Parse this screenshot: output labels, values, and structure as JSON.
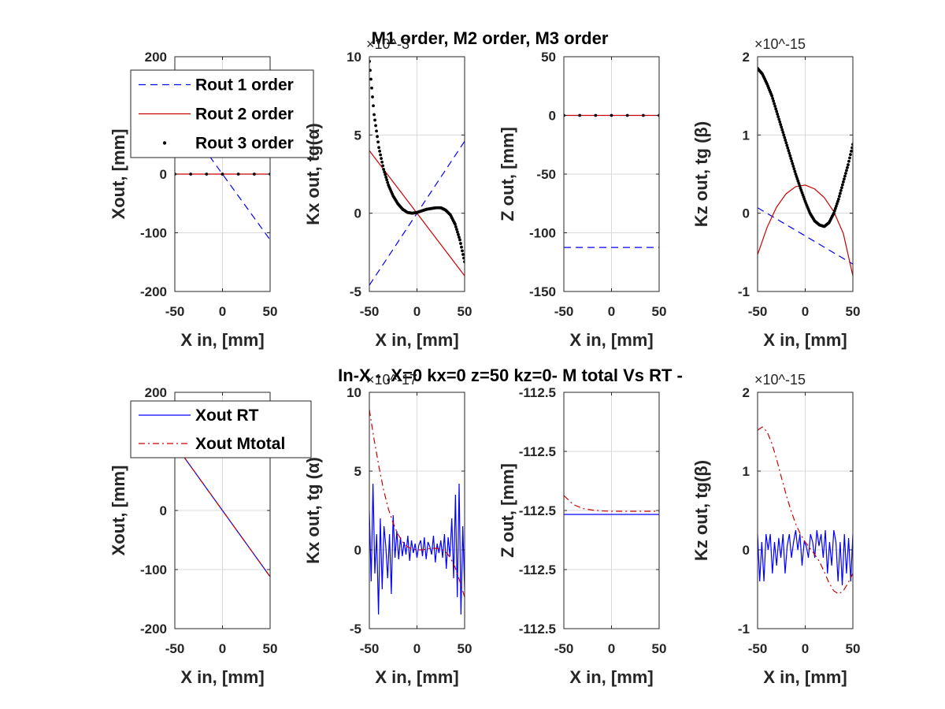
{
  "figure": {
    "title_top": "M1 order, M2 order, M3 order",
    "title_bottom": "In-X - ,X=0  kx=0   z=50   kz=0- M total Vs RT -",
    "colors": {
      "first": "#0000ff",
      "second": "#cc0000",
      "third": "#000000",
      "rt": "#0000ff",
      "mtotal": "#cc0000",
      "axis": "#262626",
      "grid": "#d9d9d9"
    }
  },
  "chart_data": [
    {
      "type": "line",
      "id": "top_xout",
      "xlabel": "X in, [mm]",
      "ylabel": "Xout, [mm]",
      "xlim": [
        -50,
        50
      ],
      "ylim": [
        -200,
        200
      ],
      "xticks": [
        "-50",
        "0",
        "50"
      ],
      "yticks": [
        "200",
        "100",
        "0",
        "-100",
        "-200"
      ],
      "legend": {
        "position": "top-left",
        "entries": [
          "Rout 1 order",
          "Rout 2 order",
          "Rout 3 order"
        ]
      },
      "series": [
        {
          "name": "Rout 1 order",
          "style": "dashed",
          "x": [
            -50,
            50
          ],
          "y": [
            112,
            -112
          ]
        },
        {
          "name": "Rout 2 order",
          "style": "solid",
          "x": [
            -50,
            50
          ],
          "y": [
            0,
            0
          ]
        },
        {
          "name": "Rout 3 order",
          "style": "dotted",
          "x": [
            -50,
            50
          ],
          "y": [
            0,
            0
          ]
        }
      ]
    },
    {
      "type": "line",
      "id": "top_kx",
      "xlabel": "X in, [mm]",
      "ylabel": "Kx out, tg(α)",
      "multiplier": "×10^-3",
      "xlim": [
        -50,
        50
      ],
      "ylim": [
        -5,
        10
      ],
      "xticks": [
        "-50",
        "0",
        "50"
      ],
      "yticks": [
        "10",
        "5",
        "0",
        "-5"
      ],
      "series": [
        {
          "name": "Rout 1 order",
          "style": "dashed",
          "x": [
            -50,
            50
          ],
          "y": [
            -4.6,
            4.6
          ]
        },
        {
          "name": "Rout 2 order",
          "style": "solid",
          "x": [
            -50,
            50
          ],
          "y": [
            4.0,
            -4.0
          ]
        },
        {
          "name": "Rout 3 order",
          "style": "dotted",
          "x": [
            -50,
            -45,
            -40,
            -35,
            -30,
            -25,
            -20,
            -15,
            -10,
            -5,
            0,
            5,
            10,
            15,
            20,
            25,
            30,
            35,
            40,
            45,
            50
          ],
          "y": [
            9.7,
            6.3,
            4.2,
            2.8,
            1.8,
            1.1,
            0.6,
            0.25,
            0.05,
            0,
            0.05,
            0.15,
            0.25,
            0.3,
            0.35,
            0.35,
            0.2,
            -0.1,
            -0.7,
            -1.7,
            -3.1
          ]
        }
      ]
    },
    {
      "type": "line",
      "id": "top_z",
      "xlabel": "X in, [mm]",
      "ylabel": "Z out, [mm]",
      "xlim": [
        -50,
        50
      ],
      "ylim": [
        -150,
        50
      ],
      "xticks": [
        "-50",
        "0",
        "50"
      ],
      "yticks": [
        "50",
        "0",
        "-50",
        "-100",
        "-150"
      ],
      "series": [
        {
          "name": "Rout 1 order",
          "style": "dashed",
          "x": [
            -50,
            50
          ],
          "y": [
            -112.5,
            -112.5
          ]
        },
        {
          "name": "Rout 2 order",
          "style": "solid",
          "x": [
            -50,
            50
          ],
          "y": [
            0,
            0
          ]
        },
        {
          "name": "Rout 3 order",
          "style": "dotted",
          "x": [
            -50,
            50
          ],
          "y": [
            0,
            0
          ]
        }
      ]
    },
    {
      "type": "line",
      "id": "top_kz",
      "xlabel": "X in, [mm]",
      "ylabel": "Kz out, tg (β)",
      "multiplier": "×10^-15",
      "xlim": [
        -50,
        50
      ],
      "ylim": [
        -1,
        2
      ],
      "xticks": [
        "-50",
        "0",
        "50"
      ],
      "yticks": [
        "2",
        "1",
        "0",
        "-1"
      ],
      "series": [
        {
          "name": "Rout 1 order",
          "style": "dashed",
          "x": [
            -50,
            50
          ],
          "y": [
            0.07,
            -0.65
          ]
        },
        {
          "name": "Rout 2 order",
          "style": "solid",
          "x": [
            -50,
            -40,
            -30,
            -20,
            -10,
            0,
            10,
            20,
            30,
            40,
            50
          ],
          "y": [
            -0.53,
            -0.18,
            0.08,
            0.25,
            0.34,
            0.36,
            0.31,
            0.2,
            0.02,
            -0.26,
            -0.8
          ]
        },
        {
          "name": "Rout 3 order",
          "style": "dotted",
          "x": [
            -50,
            -45,
            -40,
            -35,
            -30,
            -25,
            -20,
            -15,
            -10,
            -5,
            0,
            5,
            10,
            15,
            20,
            25,
            30,
            35,
            40,
            45,
            50
          ],
          "y": [
            1.85,
            1.78,
            1.65,
            1.5,
            1.3,
            1.1,
            0.9,
            0.7,
            0.5,
            0.32,
            0.15,
            0.0,
            -0.1,
            -0.15,
            -0.17,
            -0.12,
            0.0,
            0.18,
            0.4,
            0.62,
            0.88
          ]
        }
      ]
    },
    {
      "type": "line",
      "id": "bottom_xout",
      "xlabel": "X in, [mm]",
      "ylabel": "Xout, [mm]",
      "xlim": [
        -50,
        50
      ],
      "ylim": [
        -200,
        200
      ],
      "xticks": [
        "-50",
        "0",
        "50"
      ],
      "yticks": [
        "200",
        "100",
        "0",
        "-100",
        "-200"
      ],
      "legend": {
        "position": "top-left",
        "entries": [
          "Xout RT",
          "Xout  Mtotal"
        ]
      },
      "series": [
        {
          "name": "Xout RT",
          "style": "solid",
          "x": [
            -50,
            50
          ],
          "y": [
            112,
            -112
          ]
        },
        {
          "name": "Xout  Mtotal",
          "style": "dashdot",
          "x": [
            -50,
            50
          ],
          "y": [
            112,
            -112
          ]
        }
      ]
    },
    {
      "type": "line",
      "id": "bottom_kx",
      "xlabel": "X in, [mm]",
      "ylabel": "Kx out,  tg (α)",
      "multiplier": "×10^-17",
      "xlim": [
        -50,
        50
      ],
      "ylim": [
        -5,
        10
      ],
      "xticks": [
        "-50",
        "0",
        "50"
      ],
      "yticks": [
        "10",
        "5",
        "0",
        "-5"
      ],
      "series": [
        {
          "name": "Xout RT",
          "style": "solid",
          "x_range": [
            -50,
            50
          ],
          "y": [
            2.5,
            -2.0,
            4.2,
            -1.5,
            1.0,
            -4.1,
            2.0,
            -2.5,
            1.5,
            0.2,
            -1.8,
            1.0,
            -2.8,
            2.2,
            -0.5,
            1.2,
            -0.6,
            0.8,
            -0.4,
            0.5,
            -0.3,
            0.9,
            -0.7,
            0.6,
            -0.2,
            0.4,
            -0.5,
            0.3,
            0.6,
            -0.4,
            0.8,
            -0.6,
            0.5,
            0.2,
            -0.3,
            0.9,
            -0.8,
            0.4,
            -0.2,
            0.6,
            -0.5,
            1.0,
            -1.2,
            0.8,
            -0.4,
            2.0,
            -1.8,
            3.5,
            -3.0,
            4.2,
            -4.1,
            1.5,
            -2.5
          ]
        },
        {
          "name": "Xout  Mtotal",
          "style": "dashdot",
          "x": [
            -50,
            -45,
            -40,
            -35,
            -30,
            -25,
            -20,
            -15,
            -10,
            -5,
            0,
            5,
            10,
            15,
            20,
            25,
            30,
            35,
            40,
            45,
            50
          ],
          "y": [
            8.9,
            7.0,
            5.3,
            3.8,
            2.6,
            1.7,
            1.0,
            0.5,
            0.2,
            0.05,
            0.0,
            0.0,
            0.05,
            0.1,
            0.1,
            0.05,
            -0.1,
            -0.5,
            -1.1,
            -2.0,
            -3.0
          ]
        }
      ]
    },
    {
      "type": "line",
      "id": "bottom_z",
      "xlabel": "X in, [mm]",
      "ylabel": "Z out, [mm]",
      "ylim": [
        -112.53,
        -112.47
      ],
      "xticks": [
        "-50",
        "0",
        "50"
      ],
      "yticks": [
        "-112.5",
        "-112.5",
        "-112.5",
        "-112.5",
        "-112.5"
      ],
      "series": [
        {
          "name": "Xout RT",
          "style": "solid",
          "x": [
            -50,
            50
          ],
          "y": [
            -112.501,
            -112.501
          ]
        },
        {
          "name": "Xout  Mtotal",
          "style": "dashdot",
          "x": [
            -50,
            -40,
            -30,
            -20,
            -10,
            0,
            10,
            20,
            30,
            40,
            50
          ],
          "y": [
            -112.4962,
            -112.4985,
            -112.4995,
            -112.4999,
            -112.5001,
            -112.5002,
            -112.5002,
            -112.5002,
            -112.5002,
            -112.5002,
            -112.5002
          ]
        }
      ]
    },
    {
      "type": "line",
      "id": "bottom_kz",
      "xlabel": "X in, [mm]",
      "ylabel": "Kz out, tg(β)",
      "multiplier": "×10^-15",
      "xlim": [
        -50,
        50
      ],
      "ylim": [
        -1,
        2
      ],
      "xticks": [
        "-50",
        "0",
        "50"
      ],
      "yticks": [
        "2",
        "1",
        "0",
        "-1"
      ],
      "series": [
        {
          "name": "Xout RT",
          "style": "solid",
          "x_range": [
            -50,
            50
          ],
          "y": [
            0.2,
            -0.4,
            0.1,
            -0.4,
            0.2,
            0.0,
            0.2,
            -0.3,
            0.1,
            -0.2,
            0.15,
            -0.1,
            0.2,
            -0.3,
            0.05,
            0.2,
            -0.1,
            0.1,
            0.25,
            0.0,
            0.2,
            -0.2,
            0.1,
            0.05,
            -0.1,
            0.2,
            0.1,
            -0.1,
            0.25,
            0.05,
            0.2,
            -0.1,
            0.25,
            -0.3,
            0.1,
            -0.2,
            0.25,
            0.1,
            -0.4,
            0.1,
            -0.45,
            0.2,
            -0.3,
            0.15,
            -0.4,
            0.2
          ]
        },
        {
          "name": "Xout  Mtotal",
          "style": "dashdot",
          "x": [
            -50,
            -45,
            -40,
            -35,
            -30,
            -25,
            -20,
            -15,
            -10,
            -5,
            0,
            5,
            10,
            15,
            20,
            25,
            30,
            35,
            40,
            45,
            50
          ],
          "y": [
            1.52,
            1.56,
            1.5,
            1.35,
            1.15,
            0.92,
            0.7,
            0.5,
            0.33,
            0.2,
            0.1,
            0.02,
            -0.06,
            -0.15,
            -0.28,
            -0.42,
            -0.52,
            -0.56,
            -0.52,
            -0.42,
            -0.3
          ]
        }
      ]
    }
  ]
}
